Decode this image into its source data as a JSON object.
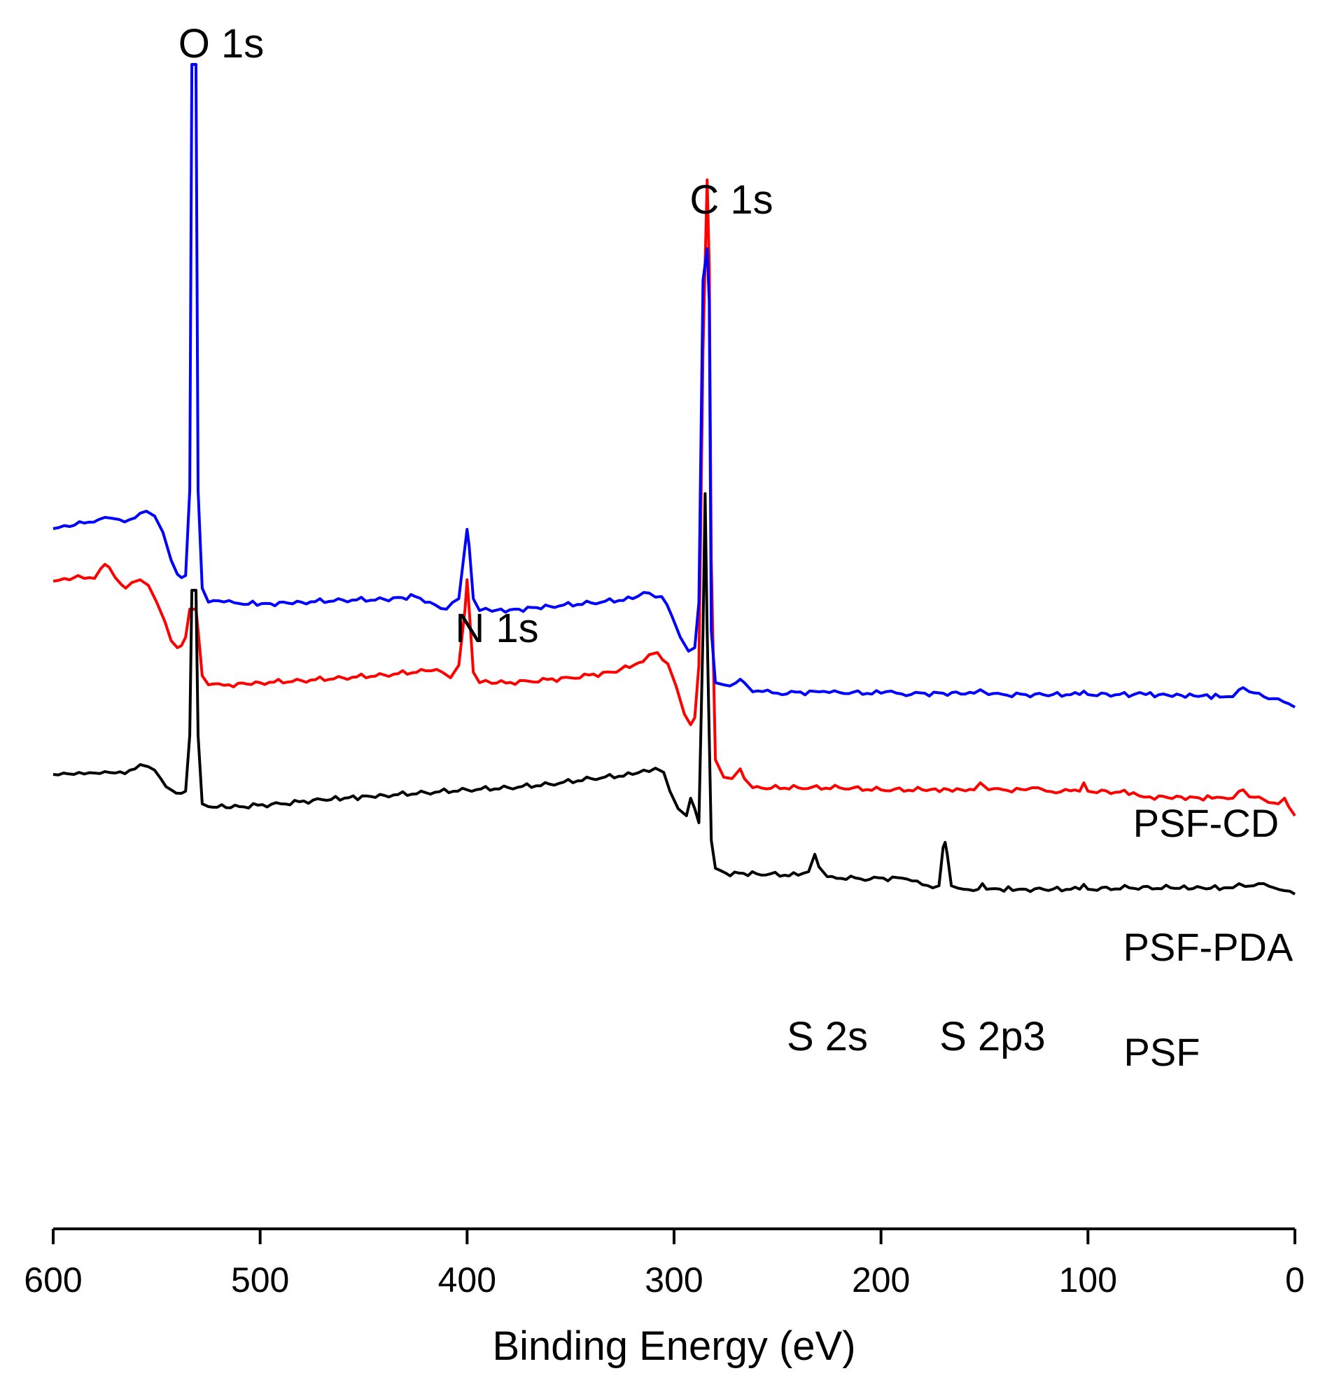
{
  "chart_data": {
    "type": "line",
    "title": "",
    "xlabel": "Binding Energy (eV)",
    "ylabel": "",
    "xlim": [
      600,
      0
    ],
    "xticks": [
      600,
      500,
      400,
      300,
      200,
      100,
      0
    ],
    "y_axis_visible": false,
    "y_units": "arbitrary intensity (stacked, offset)",
    "colors": {
      "PSF-CD": "#0000ff",
      "PSF-PDA": "#ff0000",
      "PSF": "#000000"
    },
    "series": [
      {
        "name": "PSF-CD",
        "label": "PSF-CD",
        "points": [
          [
            600,
            755
          ],
          [
            592,
            752
          ],
          [
            585,
            747
          ],
          [
            578,
            742
          ],
          [
            572,
            740
          ],
          [
            568,
            742
          ],
          [
            563,
            742
          ],
          [
            558,
            733
          ],
          [
            555,
            730
          ],
          [
            551,
            737
          ],
          [
            547,
            760
          ],
          [
            543,
            800
          ],
          [
            540,
            820
          ],
          [
            538,
            825
          ],
          [
            536,
            822
          ],
          [
            534,
            700
          ],
          [
            533,
            92
          ],
          [
            531,
            92
          ],
          [
            530,
            700
          ],
          [
            528,
            840
          ],
          [
            525,
            860
          ],
          [
            520,
            858
          ],
          [
            510,
            862
          ],
          [
            495,
            862
          ],
          [
            480,
            860
          ],
          [
            460,
            857
          ],
          [
            440,
            856
          ],
          [
            425,
            852
          ],
          [
            418,
            860
          ],
          [
            410,
            870
          ],
          [
            404,
            855
          ],
          [
            401,
            780
          ],
          [
            400,
            756
          ],
          [
            399,
            780
          ],
          [
            397,
            855
          ],
          [
            394,
            872
          ],
          [
            388,
            873
          ],
          [
            375,
            870
          ],
          [
            360,
            866
          ],
          [
            340,
            861
          ],
          [
            320,
            855
          ],
          [
            312,
            847
          ],
          [
            306,
            852
          ],
          [
            301,
            880
          ],
          [
            297,
            910
          ],
          [
            293,
            930
          ],
          [
            290,
            925
          ],
          [
            288,
            860
          ],
          [
            286,
            400
          ],
          [
            284,
            355
          ],
          [
            283,
            430
          ],
          [
            282,
            900
          ],
          [
            280,
            975
          ],
          [
            276,
            978
          ],
          [
            270,
            975
          ],
          [
            268,
            970
          ],
          [
            266,
            975
          ],
          [
            262,
            988
          ],
          [
            250,
            990
          ],
          [
            230,
            988
          ],
          [
            220,
            989
          ],
          [
            200,
            990
          ],
          [
            195,
            987
          ],
          [
            190,
            991
          ],
          [
            170,
            990
          ],
          [
            155,
            990
          ],
          [
            152,
            985
          ],
          [
            148,
            992
          ],
          [
            130,
            992
          ],
          [
            104,
            992
          ],
          [
            102,
            987
          ],
          [
            100,
            992
          ],
          [
            78,
            992
          ],
          [
            75,
            989
          ],
          [
            72,
            992
          ],
          [
            55,
            993
          ],
          [
            30,
            995
          ],
          [
            27,
            985
          ],
          [
            25,
            982
          ],
          [
            22,
            988
          ],
          [
            15,
            995
          ],
          [
            8,
            998
          ],
          [
            3,
            1005
          ],
          [
            0,
            1010
          ]
        ]
      },
      {
        "name": "PSF-PDA",
        "label": "PSF-PDA",
        "points": [
          [
            600,
            830
          ],
          [
            592,
            828
          ],
          [
            588,
            822
          ],
          [
            585,
            826
          ],
          [
            580,
            826
          ],
          [
            577,
            812
          ],
          [
            575,
            806
          ],
          [
            573,
            810
          ],
          [
            570,
            825
          ],
          [
            567,
            835
          ],
          [
            565,
            840
          ],
          [
            562,
            832
          ],
          [
            558,
            828
          ],
          [
            554,
            836
          ],
          [
            550,
            860
          ],
          [
            546,
            888
          ],
          [
            543,
            915
          ],
          [
            540,
            925
          ],
          [
            538,
            922
          ],
          [
            536,
            910
          ],
          [
            534,
            870
          ],
          [
            533,
            870
          ],
          [
            531,
            870
          ],
          [
            530,
            900
          ],
          [
            528,
            965
          ],
          [
            525,
            978
          ],
          [
            515,
            978
          ],
          [
            500,
            975
          ],
          [
            480,
            972
          ],
          [
            460,
            968
          ],
          [
            440,
            964
          ],
          [
            420,
            958
          ],
          [
            412,
            960
          ],
          [
            408,
            968
          ],
          [
            404,
            950
          ],
          [
            401,
            870
          ],
          [
            400,
            828
          ],
          [
            399,
            870
          ],
          [
            397,
            960
          ],
          [
            394,
            975
          ],
          [
            388,
            976
          ],
          [
            370,
            973
          ],
          [
            350,
            968
          ],
          [
            330,
            960
          ],
          [
            315,
            945
          ],
          [
            312,
            935
          ],
          [
            308,
            932
          ],
          [
            303,
            948
          ],
          [
            299,
            980
          ],
          [
            295,
            1020
          ],
          [
            292,
            1035
          ],
          [
            290,
            1025
          ],
          [
            288,
            950
          ],
          [
            286,
            500
          ],
          [
            284,
            257
          ],
          [
            283,
            380
          ],
          [
            282,
            800
          ],
          [
            280,
            1085
          ],
          [
            276,
            1110
          ],
          [
            272,
            1112
          ],
          [
            268,
            1098
          ],
          [
            266,
            1112
          ],
          [
            262,
            1125
          ],
          [
            240,
            1125
          ],
          [
            220,
            1125
          ],
          [
            200,
            1128
          ],
          [
            180,
            1128
          ],
          [
            155,
            1128
          ],
          [
            152,
            1118
          ],
          [
            148,
            1128
          ],
          [
            130,
            1128
          ],
          [
            124,
            1125
          ],
          [
            120,
            1130
          ],
          [
            104,
            1130
          ],
          [
            102,
            1118
          ],
          [
            100,
            1130
          ],
          [
            78,
            1132
          ],
          [
            70,
            1138
          ],
          [
            40,
            1140
          ],
          [
            30,
            1140
          ],
          [
            27,
            1130
          ],
          [
            25,
            1128
          ],
          [
            22,
            1138
          ],
          [
            15,
            1142
          ],
          [
            8,
            1148
          ],
          [
            5,
            1140
          ],
          [
            3,
            1152
          ],
          [
            0,
            1165
          ]
        ]
      },
      {
        "name": "PSF",
        "label": "PSF",
        "points": [
          [
            600,
            1106
          ],
          [
            590,
            1106
          ],
          [
            580,
            1104
          ],
          [
            570,
            1104
          ],
          [
            563,
            1100
          ],
          [
            558,
            1092
          ],
          [
            554,
            1095
          ],
          [
            548,
            1112
          ],
          [
            543,
            1128
          ],
          [
            538,
            1133
          ],
          [
            536,
            1130
          ],
          [
            534,
            1050
          ],
          [
            533,
            843
          ],
          [
            531,
            843
          ],
          [
            530,
            1050
          ],
          [
            528,
            1148
          ],
          [
            525,
            1152
          ],
          [
            510,
            1152
          ],
          [
            490,
            1148
          ],
          [
            470,
            1142
          ],
          [
            440,
            1136
          ],
          [
            420,
            1132
          ],
          [
            400,
            1128
          ],
          [
            380,
            1125
          ],
          [
            360,
            1120
          ],
          [
            340,
            1112
          ],
          [
            320,
            1106
          ],
          [
            312,
            1102
          ],
          [
            309,
            1097
          ],
          [
            305,
            1103
          ],
          [
            302,
            1130
          ],
          [
            298,
            1155
          ],
          [
            294,
            1165
          ],
          [
            292,
            1140
          ],
          [
            290,
            1155
          ],
          [
            288,
            1175
          ],
          [
            286,
            900
          ],
          [
            285,
            705
          ],
          [
            284,
            900
          ],
          [
            282,
            1200
          ],
          [
            280,
            1240
          ],
          [
            275,
            1247
          ],
          [
            260,
            1248
          ],
          [
            240,
            1250
          ],
          [
            235,
            1245
          ],
          [
            232,
            1220
          ],
          [
            230,
            1238
          ],
          [
            226,
            1252
          ],
          [
            210,
            1255
          ],
          [
            190,
            1254
          ],
          [
            185,
            1258
          ],
          [
            175,
            1268
          ],
          [
            172,
            1265
          ],
          [
            170,
            1210
          ],
          [
            169,
            1203
          ],
          [
            168,
            1220
          ],
          [
            166,
            1265
          ],
          [
            160,
            1270
          ],
          [
            153,
            1270
          ],
          [
            151,
            1262
          ],
          [
            149,
            1270
          ],
          [
            130,
            1270
          ],
          [
            104,
            1270
          ],
          [
            102,
            1263
          ],
          [
            100,
            1270
          ],
          [
            80,
            1268
          ],
          [
            60,
            1268
          ],
          [
            30,
            1268
          ],
          [
            27,
            1262
          ],
          [
            24,
            1266
          ],
          [
            20,
            1265
          ],
          [
            15,
            1262
          ],
          [
            10,
            1268
          ],
          [
            5,
            1272
          ],
          [
            0,
            1277
          ]
        ]
      }
    ],
    "annotations": [
      {
        "text": "O 1s"
      },
      {
        "text": "C 1s"
      },
      {
        "text": "N 1s"
      },
      {
        "text": "S 2s"
      },
      {
        "text": "S 2p3"
      }
    ]
  }
}
